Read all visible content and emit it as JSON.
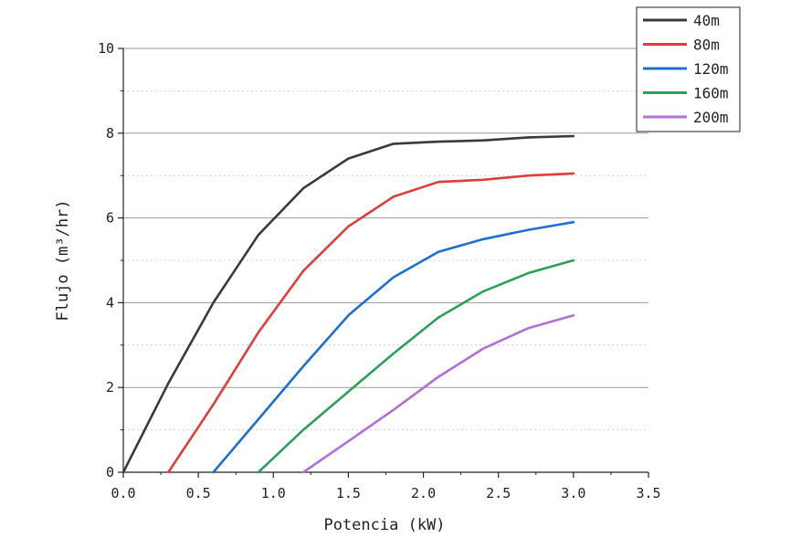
{
  "chart_data": {
    "type": "line",
    "xlabel": "Potencia (kW)",
    "ylabel": "Flujo (m³/hr)",
    "xlim": [
      0,
      3.5
    ],
    "ylim": [
      0,
      10
    ],
    "xticks": [
      "0.0",
      "0.5",
      "1.0",
      "1.5",
      "2.0",
      "2.5",
      "3.0",
      "3.5"
    ],
    "yticks": [
      "0",
      "2",
      "4",
      "6",
      "8",
      "10"
    ],
    "grid": true,
    "legend_position": "top-right",
    "series": [
      {
        "name": "40m",
        "color": "#3a3a3a",
        "x": [
          0.0,
          0.3,
          0.6,
          0.9,
          1.2,
          1.5,
          1.8,
          2.1,
          2.4,
          2.7,
          3.0
        ],
        "y": [
          0.0,
          2.1,
          4.0,
          5.6,
          6.7,
          7.4,
          7.75,
          7.8,
          7.83,
          7.9,
          7.93
        ]
      },
      {
        "name": "80m",
        "color": "#e03c3c",
        "x": [
          0.3,
          0.6,
          0.9,
          1.2,
          1.5,
          1.8,
          2.1,
          2.4,
          2.7,
          3.0
        ],
        "y": [
          0.0,
          1.6,
          3.3,
          4.75,
          5.8,
          6.5,
          6.85,
          6.9,
          7.0,
          7.05
        ]
      },
      {
        "name": "120m",
        "color": "#1f6fd0",
        "x": [
          0.6,
          0.9,
          1.2,
          1.5,
          1.8,
          2.1,
          2.4,
          2.7,
          3.0
        ],
        "y": [
          0.0,
          1.25,
          2.5,
          3.7,
          4.6,
          5.2,
          5.5,
          5.72,
          5.9
        ]
      },
      {
        "name": "160m",
        "color": "#2ca05a",
        "x": [
          0.9,
          1.2,
          1.5,
          1.8,
          2.1,
          2.4,
          2.7,
          3.0
        ],
        "y": [
          0.0,
          1.0,
          1.9,
          2.8,
          3.65,
          4.27,
          4.7,
          5.0
        ]
      },
      {
        "name": "200m",
        "color": "#b071d6",
        "x": [
          1.2,
          1.5,
          1.8,
          2.1,
          2.4,
          2.7,
          3.0
        ],
        "y": [
          0.0,
          0.73,
          1.47,
          2.25,
          2.92,
          3.4,
          3.7
        ]
      }
    ]
  }
}
